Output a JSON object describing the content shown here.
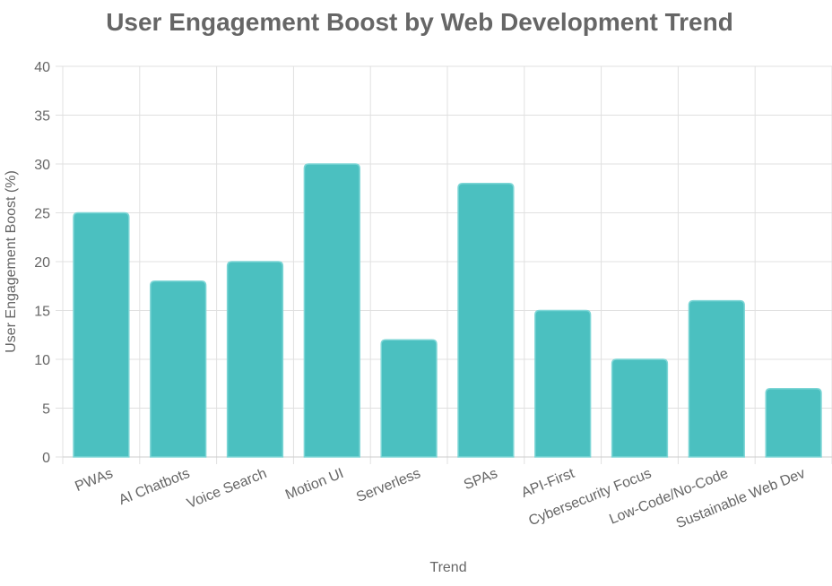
{
  "chart_data": {
    "type": "bar",
    "title": "User Engagement Boost by Web Development Trend",
    "xlabel": "Trend",
    "ylabel": "User Engagement Boost (%)",
    "categories": [
      "PWAs",
      "AI Chatbots",
      "Voice Search",
      "Motion UI",
      "Serverless",
      "SPAs",
      "API-First",
      "Cybersecurity Focus",
      "Low-Code/No-Code",
      "Sustainable Web Dev"
    ],
    "values": [
      25,
      18,
      20,
      30,
      12,
      28,
      15,
      10,
      16,
      7
    ],
    "ylim": [
      0,
      40
    ],
    "yticks": [
      0,
      5,
      10,
      15,
      20,
      25,
      30,
      35,
      40
    ],
    "grid": true,
    "legend": "none",
    "colors": {
      "bar_fill": "#4BC0C0",
      "bar_border": "#7ED6D6",
      "grid": "#e0e0e0",
      "text": "#666666"
    }
  }
}
